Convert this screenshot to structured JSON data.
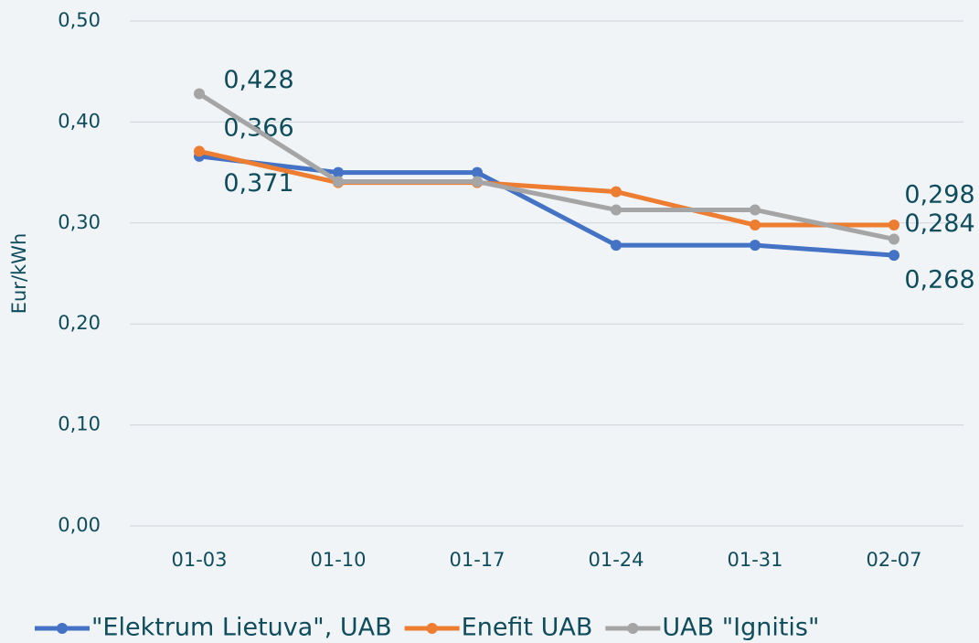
{
  "chart_data": {
    "type": "line",
    "y_label": "Eur/kWh",
    "categories": [
      "01-03",
      "01-10",
      "01-17",
      "01-24",
      "01-31",
      "02-07"
    ],
    "series": [
      {
        "name": "\"Elektrum Lietuva\", UAB",
        "color": "#4472c4",
        "values": [
          0.366,
          0.35,
          0.35,
          0.278,
          0.278,
          0.268
        ],
        "value_labels": [
          "0,366",
          null,
          null,
          null,
          null,
          "0,268"
        ]
      },
      {
        "name": "Enefit UAB",
        "color": "#ed7d31",
        "values": [
          0.371,
          0.34,
          0.34,
          0.331,
          0.298,
          0.298
        ],
        "value_labels": [
          "0,371",
          null,
          null,
          null,
          null,
          "0,298"
        ]
      },
      {
        "name": "UAB \"Ignitis\"",
        "color": "#a5a5a5",
        "values": [
          0.428,
          0.341,
          0.341,
          0.313,
          0.313,
          0.284
        ],
        "value_labels": [
          "0,428",
          null,
          null,
          null,
          null,
          "0,284"
        ]
      }
    ],
    "ylim": [
      0,
      0.5
    ],
    "yticks": [
      {
        "value": 0,
        "label": "0,00"
      },
      {
        "value": 0.1,
        "label": "0,10"
      },
      {
        "value": 0.2,
        "label": "0,20"
      },
      {
        "value": 0.3,
        "label": "0,30"
      },
      {
        "value": 0.4,
        "label": "0,40"
      },
      {
        "value": 0.5,
        "label": "0,50"
      }
    ],
    "grid": true,
    "legend": "bottom"
  }
}
